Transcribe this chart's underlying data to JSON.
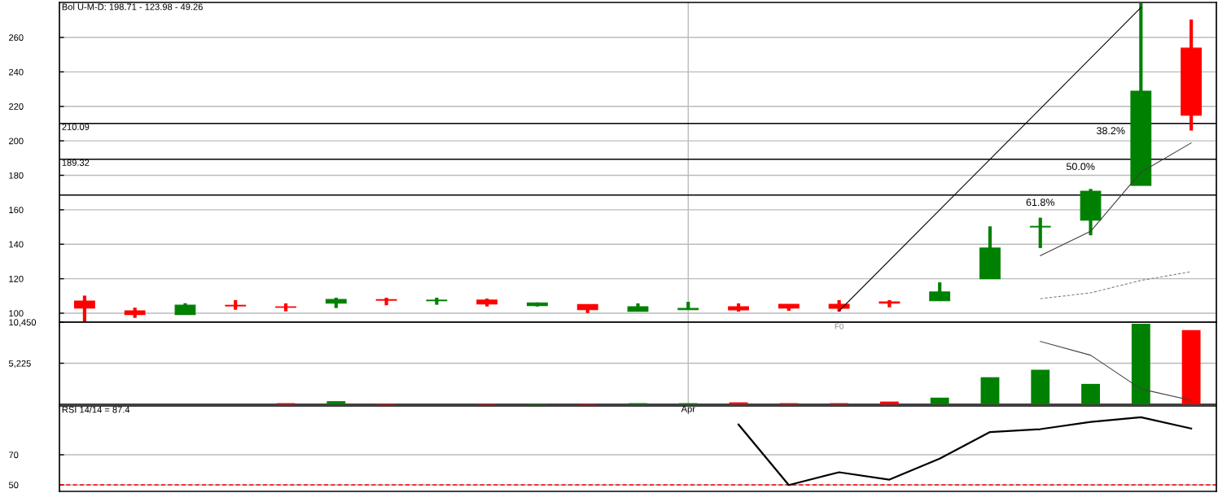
{
  "chart_data": [
    {
      "type": "candlestick",
      "title": "Bol U-M-D: 198.71 - 123.98 - 49.26",
      "categories": [
        null,
        null,
        null,
        null,
        null,
        null,
        null,
        null,
        null,
        null,
        null,
        null,
        null,
        null,
        null,
        null,
        null,
        null,
        null,
        null,
        null,
        null,
        null
      ],
      "ohlc": [
        [
          107.1,
          110.2,
          95.0,
          103.0
        ],
        [
          101.4,
          103.2,
          97.3,
          99.2
        ],
        [
          99.2,
          105.8,
          99.2,
          104.7
        ],
        [
          104.6,
          107.6,
          102.0,
          104.2
        ],
        [
          103.7,
          105.7,
          101.1,
          103.4
        ],
        [
          105.8,
          109.0,
          103.0,
          108.0
        ],
        [
          107.9,
          109.0,
          104.6,
          107.5
        ],
        [
          107.2,
          109.0,
          104.9,
          107.6
        ],
        [
          107.6,
          108.5,
          103.9,
          105.3
        ],
        [
          104.4,
          106.2,
          103.9,
          106.0
        ],
        [
          105.0,
          105.0,
          100.1,
          102.0
        ],
        [
          101.1,
          105.7,
          101.1,
          103.8
        ],
        [
          102.0,
          106.6,
          102.0,
          102.8
        ],
        [
          103.8,
          105.7,
          100.9,
          101.9
        ],
        [
          105.2,
          105.2,
          101.4,
          103.0
        ],
        [
          105.2,
          107.6,
          100.9,
          102.8
        ],
        [
          106.6,
          107.6,
          103.4,
          105.8
        ],
        [
          107.2,
          117.9,
          107.2,
          112.3
        ],
        [
          120.0,
          150.4,
          120.0,
          137.8
        ],
        [
          150.0,
          155.4,
          137.8,
          150.4
        ],
        [
          153.9,
          172.1,
          145.2,
          170.8
        ],
        [
          174.1,
          279.8,
          174.1,
          228.8
        ],
        [
          253.8,
          270.4,
          205.9,
          214.8
        ]
      ],
      "colors": [
        "#ff0000",
        "#ff0000",
        "#008000",
        "#ff0000",
        "#ff0000",
        "#008000",
        "#ff0000",
        "#008000",
        "#ff0000",
        "#008000",
        "#ff0000",
        "#008000",
        "#008000",
        "#ff0000",
        "#ff0000",
        "#ff0000",
        "#ff0000",
        "#008000",
        "#008000",
        "#008000",
        "#008000",
        "#008000",
        "#ff0000"
      ],
      "series": [
        {
          "type": "line",
          "color": "#000000",
          "line_style": "solid",
          "values": [
            null,
            null,
            null,
            null,
            null,
            null,
            null,
            null,
            null,
            null,
            null,
            null,
            null,
            null,
            null,
            101.3,
            null,
            null,
            null,
            null,
            null,
            277.3,
            null
          ]
        },
        {
          "type": "line",
          "color": "#404040",
          "line_style": "solid",
          "values": [
            null,
            null,
            null,
            null,
            null,
            null,
            null,
            null,
            null,
            null,
            null,
            null,
            null,
            null,
            null,
            null,
            null,
            null,
            null,
            133.4,
            147.5,
            181.8,
            198.8
          ]
        },
        {
          "type": "line",
          "color": "#808080",
          "line_style": "dashed",
          "values": [
            null,
            null,
            null,
            null,
            null,
            null,
            null,
            null,
            null,
            null,
            null,
            null,
            null,
            null,
            null,
            null,
            null,
            null,
            null,
            108.4,
            111.8,
            119.0,
            124.1
          ]
        }
      ],
      "ylim": [
        94.8,
        280.3
      ],
      "yticks": [
        100,
        120,
        140,
        160,
        180,
        200,
        220,
        240,
        260
      ],
      "ref_lines": [
        {
          "axis": "y",
          "value": 210.09,
          "label": "210.09",
          "color": "#000000"
        },
        {
          "axis": "y",
          "value": 189.32,
          "label": "189.32",
          "color": "#000000"
        },
        {
          "axis": "y",
          "value": 168.55,
          "label": null,
          "color": "#000000"
        }
      ],
      "annotations": [
        {
          "text": "38.2%",
          "y": 210.09
        },
        {
          "text": "50.0%",
          "y": 189.32
        },
        {
          "text": "61.8%",
          "y": 168.55
        },
        "F0"
      ],
      "grid": true
    },
    {
      "type": "bar",
      "categories": [
        null,
        null,
        null,
        null,
        null,
        null,
        null,
        null,
        null,
        null,
        null,
        null,
        "Apr",
        null,
        null,
        null,
        null,
        null,
        null,
        null,
        null,
        null,
        null
      ],
      "series": [
        {
          "type": "bar",
          "values": [
            null,
            null,
            null,
            null,
            150,
            400,
            100,
            null,
            100,
            100,
            100,
            150,
            150,
            250,
            150,
            150,
            350,
            850,
            3450,
            4400,
            2600,
            10250,
            9450
          ],
          "colors": [
            "#ff0000",
            "#ff0000",
            "#008000",
            "#ff0000",
            "#ff0000",
            "#008000",
            "#ff0000",
            "#008000",
            "#ff0000",
            "#008000",
            "#ff0000",
            "#008000",
            "#008000",
            "#ff0000",
            "#ff0000",
            "#ff0000",
            "#ff0000",
            "#008000",
            "#008000",
            "#008000",
            "#008000",
            "#008000",
            "#ff0000"
          ]
        },
        {
          "type": "line",
          "color": "#404040",
          "values": [
            null,
            null,
            null,
            null,
            null,
            null,
            null,
            null,
            null,
            null,
            null,
            null,
            null,
            null,
            null,
            null,
            null,
            null,
            null,
            8000,
            6250,
            1950,
            500
          ]
        }
      ],
      "ylim": [
        0,
        10450
      ],
      "yticks": [
        {
          "value": 5225,
          "label": "5,225"
        },
        {
          "value": 10450,
          "label": "10,450"
        }
      ],
      "grid": true
    },
    {
      "type": "line",
      "title": "RSI 14/14 = 87.4",
      "categories": [
        null,
        null,
        null,
        null,
        null,
        null,
        null,
        null,
        null,
        null,
        null,
        null,
        null,
        null,
        null,
        null,
        null,
        null,
        null,
        null,
        null,
        null,
        null
      ],
      "series": [
        {
          "color": "#000000",
          "values": [
            null,
            null,
            null,
            null,
            null,
            null,
            null,
            null,
            null,
            null,
            null,
            null,
            null,
            90.1,
            49.9,
            58.4,
            53.5,
            67.4,
            85.1,
            87.0,
            91.8,
            94.9,
            87.4
          ]
        }
      ],
      "ylim": [
        45.7,
        102.4
      ],
      "yticks": [
        50,
        70
      ],
      "ref_lines": [
        {
          "axis": "y",
          "value": 50,
          "label": null,
          "color": "#ff0000",
          "line_style": "dashed"
        }
      ],
      "grid": "y"
    }
  ]
}
